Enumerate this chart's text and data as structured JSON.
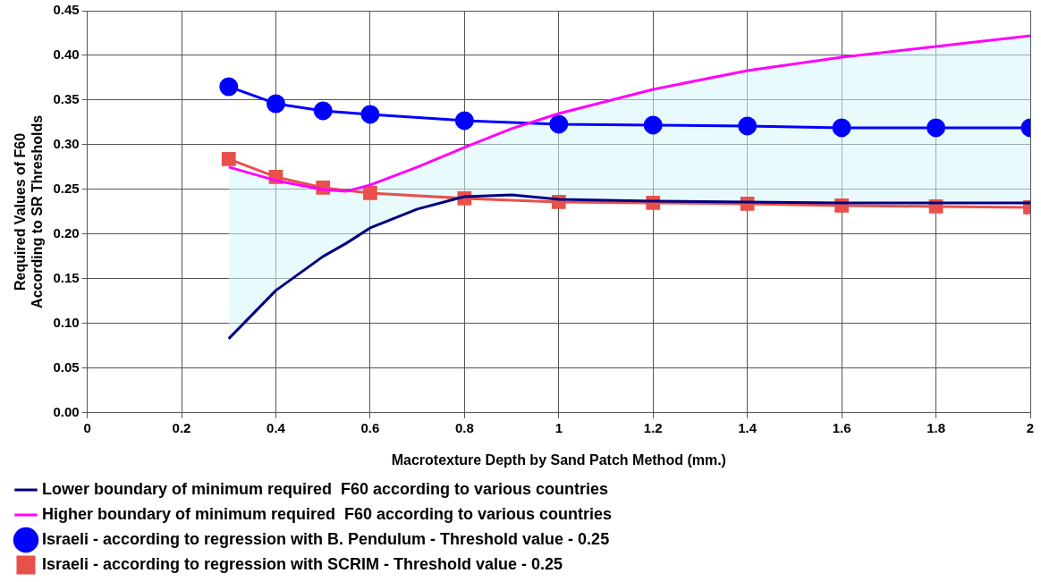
{
  "chart_data": {
    "type": "line",
    "xlabel": "Macrotexture Depth by Sand Patch Method (mm.)",
    "ylabel": "Required Values of F60\nAccording to SR Thresholds",
    "xlim": [
      0,
      2
    ],
    "xticks": [
      0,
      0.2,
      0.4,
      0.6,
      0.8,
      1,
      1.2,
      1.4,
      1.6,
      1.8,
      2
    ],
    "ylim": [
      0,
      0.45
    ],
    "yticks": [
      {
        "value": 0,
        "label": "0.00"
      },
      {
        "value": 0.05,
        "label": "0.05"
      },
      {
        "value": 0.1,
        "label": "0.10"
      },
      {
        "value": 0.15,
        "label": "0.15"
      },
      {
        "value": 0.2,
        "label": "0.20"
      },
      {
        "value": 0.25,
        "label": "0.25"
      },
      {
        "value": 0.3,
        "label": "0.30"
      },
      {
        "value": 0.35,
        "label": "0.35"
      },
      {
        "value": 0.4,
        "label": "0.40"
      },
      {
        "value": 0.45,
        "label": "0.45"
      }
    ],
    "grid": true,
    "legend": "bottom",
    "series": [
      {
        "name": "Lower boundary of minimum required  F60 according to various countries",
        "color": "#000080",
        "marker": "none",
        "x": [
          0.3,
          0.4,
          0.5,
          0.55,
          0.6,
          0.7,
          0.8,
          0.9,
          1,
          1.2,
          1.4,
          1.6,
          1.8,
          2
        ],
        "values": [
          0.083,
          0.137,
          0.175,
          0.19,
          0.207,
          0.228,
          0.242,
          0.244,
          0.239,
          0.237,
          0.236,
          0.235,
          0.235,
          0.235
        ]
      },
      {
        "name": "Higher boundary of minimum required  F60 according to various countries",
        "type": "area",
        "color": "#ff00ff",
        "marker": "none",
        "x": [
          0.3,
          0.4,
          0.5,
          0.55,
          0.6,
          0.7,
          0.8,
          0.9,
          1,
          1.2,
          1.4,
          1.6,
          1.8,
          2
        ],
        "values": [
          0.275,
          0.26,
          0.25,
          0.248,
          0.255,
          0.275,
          0.297,
          0.318,
          0.335,
          0.362,
          0.383,
          0.398,
          0.41,
          0.422
        ]
      },
      {
        "name": "Israeli - according to regression with B. Pendulum - Threshold value - 0.25",
        "color": "#0000ff",
        "marker": "circle",
        "x": [
          0.3,
          0.4,
          0.5,
          0.6,
          0.8,
          1,
          1.2,
          1.4,
          1.6,
          1.8,
          2
        ],
        "values": [
          0.365,
          0.346,
          0.338,
          0.334,
          0.327,
          0.323,
          0.322,
          0.321,
          0.319,
          0.319,
          0.319
        ]
      },
      {
        "name": "Israeli - according to regression with SCRIM - Threshold value - 0.25",
        "color": "#e8504a",
        "marker": "square",
        "x": [
          0.3,
          0.4,
          0.5,
          0.6,
          0.8,
          1,
          1.2,
          1.4,
          1.6,
          1.8,
          2
        ],
        "values": [
          0.284,
          0.264,
          0.252,
          0.246,
          0.24,
          0.236,
          0.235,
          0.234,
          0.232,
          0.231,
          0.23
        ]
      }
    ]
  }
}
